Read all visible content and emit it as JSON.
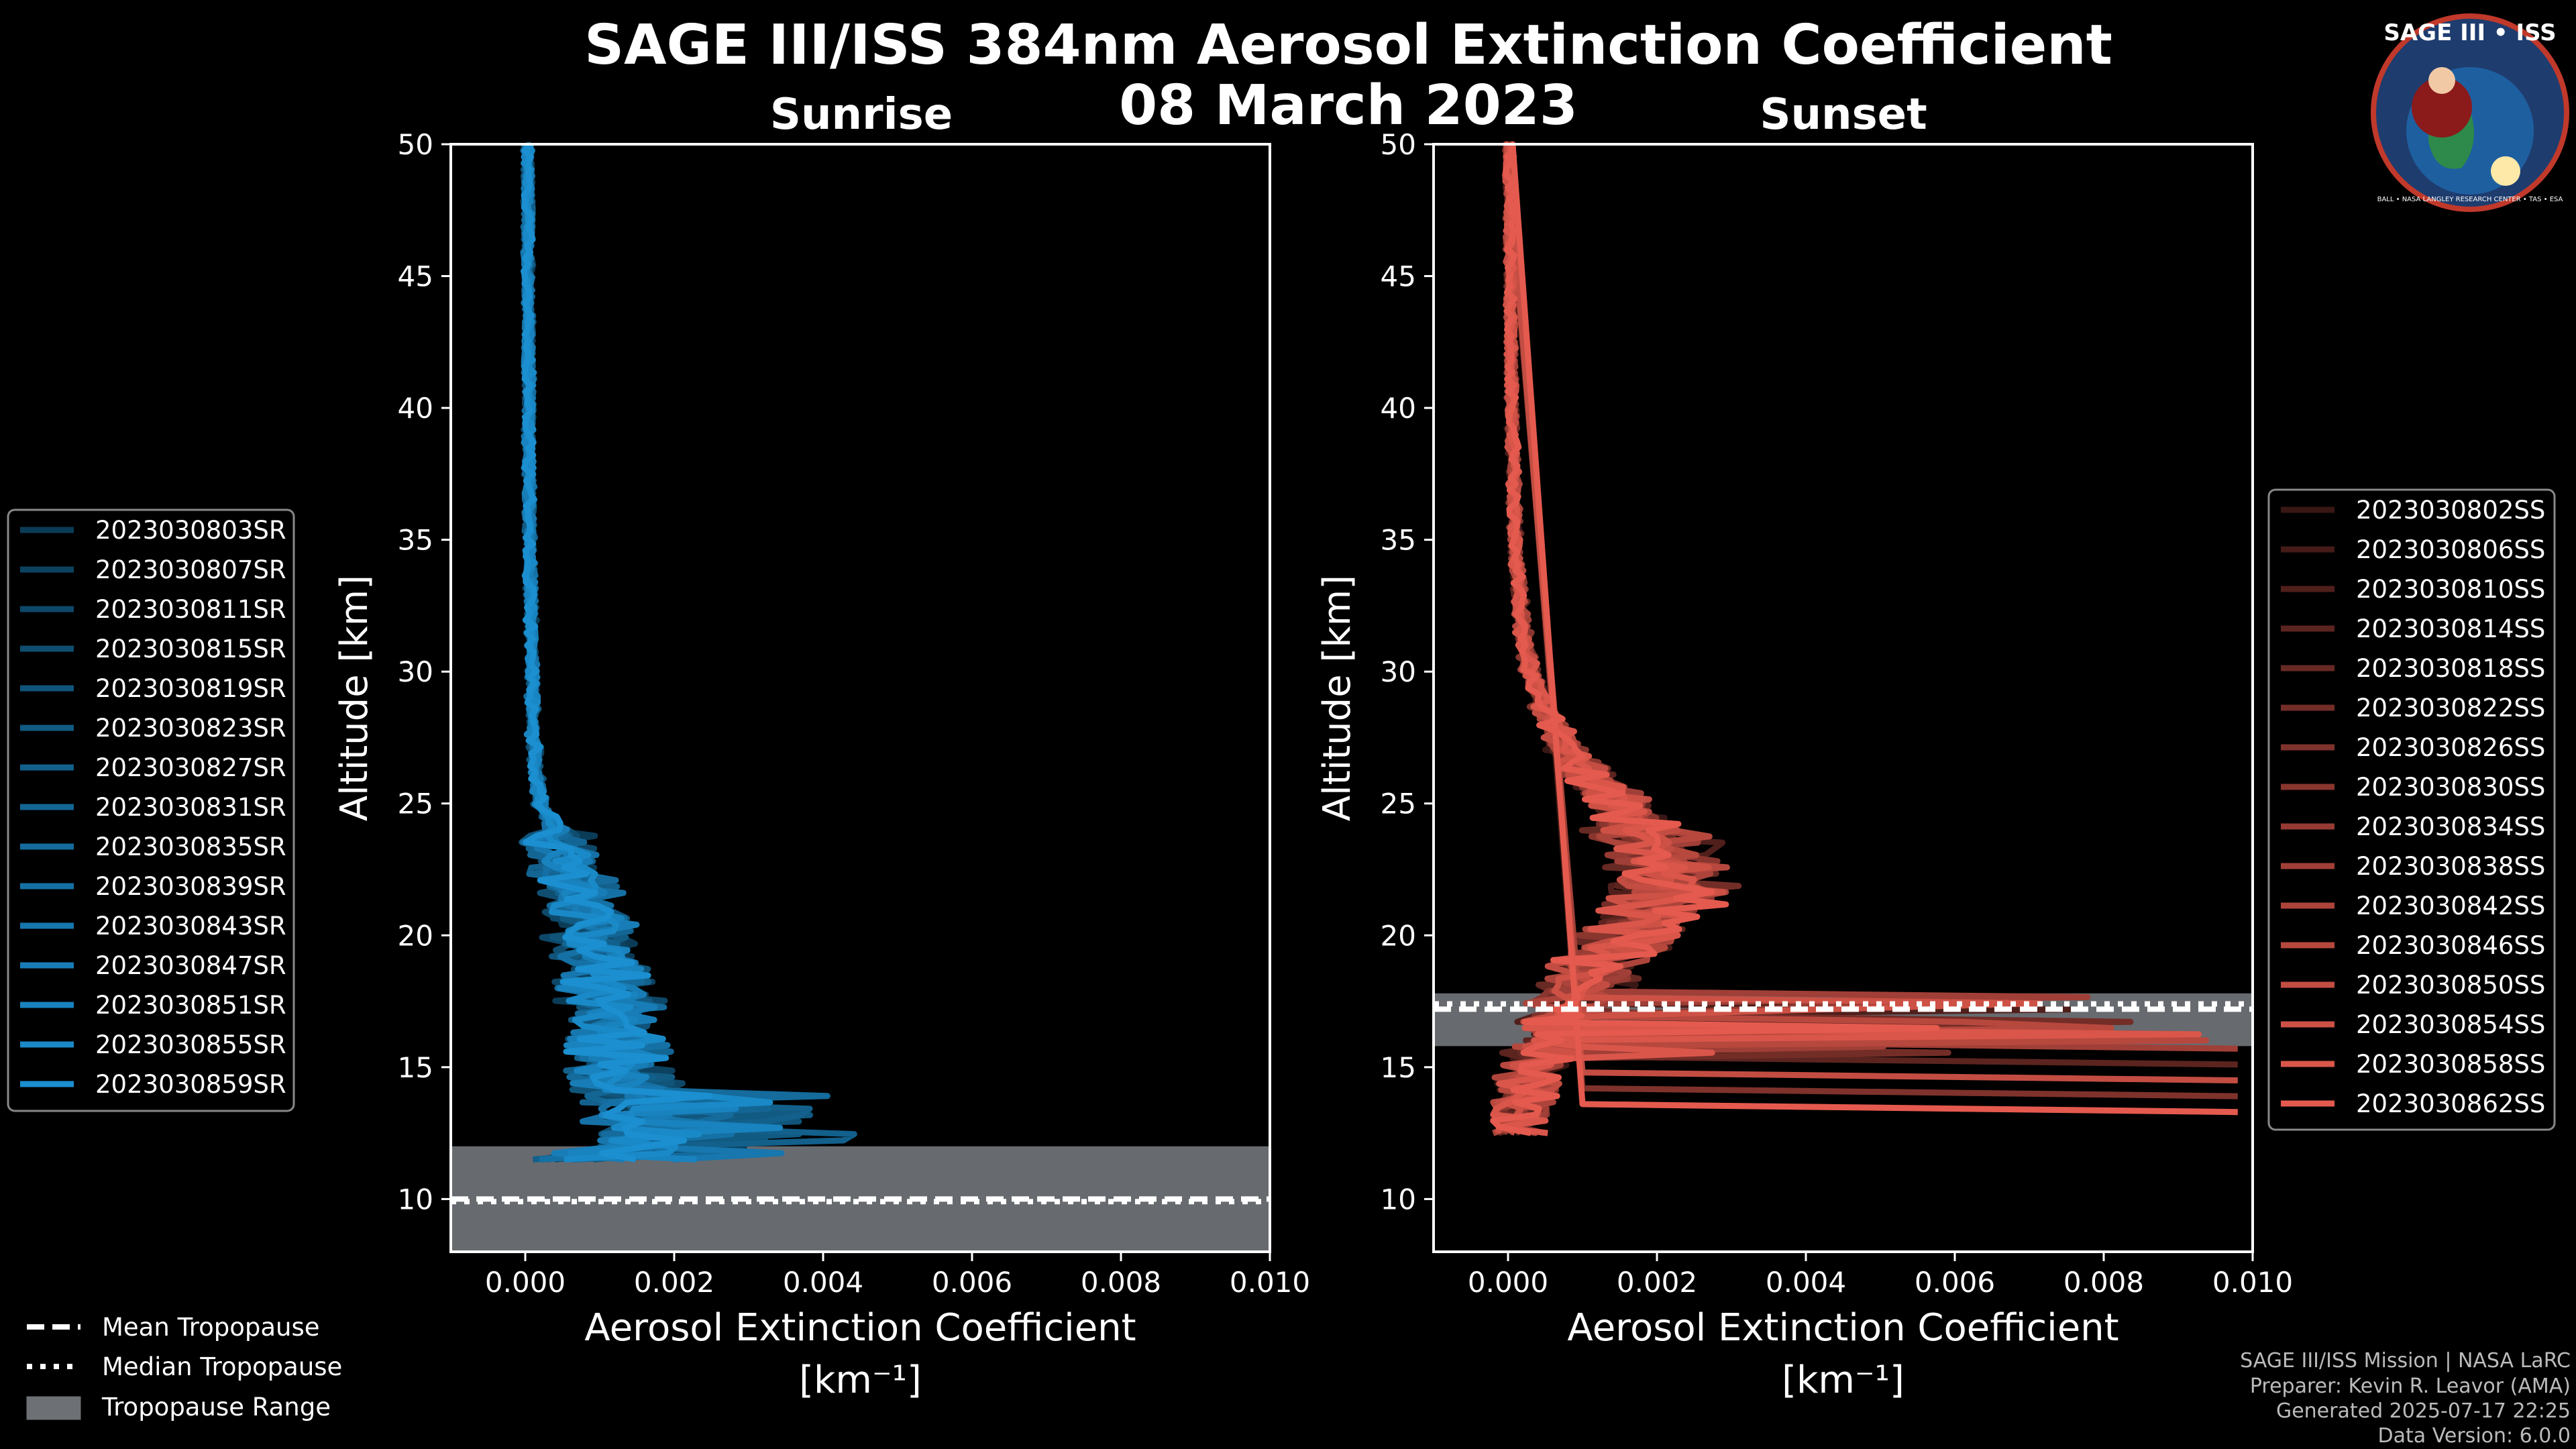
{
  "title_line1": "SAGE III/ISS 384nm Aerosol Extinction Coefficient",
  "title_line2": "08 March 2023",
  "badge": {
    "text": "SAGE III • ISS",
    "subtext": "BALL • NASA LANGLEY RESEARCH CENTER • TAS • ESA",
    "colors": {
      "ring": "#c0392b",
      "inner": "#1e5fa0"
    }
  },
  "colors": {
    "sunrise": "#1b8fd0",
    "sunset": "#e55a4e",
    "trop_fill": "#6d7075"
  },
  "tropopause_legend": {
    "mean": "Mean Tropopause",
    "median": "Median Tropopause",
    "range": "Tropopause Range"
  },
  "footer": {
    "line1": "SAGE III/ISS Mission | NASA LaRC",
    "line2": "Preparer: Kevin R. Leavor (AMA)",
    "line3": "Generated 2025-07-17 22:25",
    "line4": "Data Version: 6.0.0"
  },
  "chart_data": [
    {
      "type": "line",
      "title": "Sunrise",
      "xlabel": "Aerosol Extinction Coefficient",
      "xunit": "[km⁻¹]",
      "ylabel": "Altitude [km]",
      "xlim": [
        -0.001,
        0.01
      ],
      "ylim": [
        8,
        50
      ],
      "xticks": [
        "0.000",
        "0.002",
        "0.004",
        "0.006",
        "0.008",
        "0.010"
      ],
      "yticks": [
        "10",
        "15",
        "20",
        "25",
        "30",
        "35",
        "40",
        "45",
        "50"
      ],
      "series_names": [
        "2023030803SR",
        "2023030807SR",
        "2023030811SR",
        "2023030815SR",
        "2023030819SR",
        "2023030823SR",
        "2023030827SR",
        "2023030831SR",
        "2023030835SR",
        "2023030839SR",
        "2023030843SR",
        "2023030847SR",
        "2023030851SR",
        "2023030855SR",
        "2023030859SR"
      ],
      "typical_profile": {
        "altitude": [
          11.5,
          12,
          12.5,
          13,
          14,
          15,
          16,
          17,
          18,
          19,
          20,
          21,
          22,
          23,
          24,
          25,
          26,
          28,
          30,
          32,
          35,
          40,
          45,
          50
        ],
        "extinction": [
          0.0004,
          0.0013,
          0.0016,
          0.0016,
          0.0014,
          0.0013,
          0.0012,
          0.0012,
          0.0011,
          0.001,
          0.0009,
          0.0008,
          0.0007,
          0.0005,
          0.0004,
          0.0002,
          0.00015,
          0.0001,
          0.0001,
          8e-05,
          6e-05,
          5e-05,
          4e-05,
          3e-05
        ]
      },
      "tropopause": {
        "mean": 10.0,
        "median": 9.9,
        "range": [
          8.0,
          12.0
        ]
      }
    },
    {
      "type": "line",
      "title": "Sunset",
      "xlabel": "Aerosol Extinction Coefficient",
      "xunit": "[km⁻¹]",
      "ylabel": "Altitude [km]",
      "xlim": [
        -0.001,
        0.01
      ],
      "ylim": [
        8,
        50
      ],
      "xticks": [
        "0.000",
        "0.002",
        "0.004",
        "0.006",
        "0.008",
        "0.010"
      ],
      "yticks": [
        "10",
        "15",
        "20",
        "25",
        "30",
        "35",
        "40",
        "45",
        "50"
      ],
      "series_names": [
        "2023030802SS",
        "2023030806SS",
        "2023030810SS",
        "2023030814SS",
        "2023030818SS",
        "2023030822SS",
        "2023030826SS",
        "2023030830SS",
        "2023030834SS",
        "2023030838SS",
        "2023030842SS",
        "2023030846SS",
        "2023030850SS",
        "2023030854SS",
        "2023030858SS",
        "2023030862SS"
      ],
      "typical_profile": {
        "altitude": [
          12.5,
          13,
          14,
          15,
          16,
          17,
          18,
          19,
          20,
          21,
          21.5,
          22,
          23,
          24,
          25,
          26,
          27,
          28,
          29,
          30,
          32,
          35,
          40,
          45,
          50
        ],
        "extinction": [
          0.0001,
          0.0001,
          0.0002,
          0.0003,
          0.0006,
          0.0008,
          0.001,
          0.0013,
          0.0017,
          0.002,
          0.0021,
          0.0021,
          0.002,
          0.0018,
          0.0015,
          0.0011,
          0.0008,
          0.0006,
          0.0004,
          0.0003,
          0.00018,
          0.0001,
          5e-05,
          3e-05,
          2e-05
        ]
      },
      "tropopause": {
        "mean": 17.2,
        "median": 17.4,
        "range": [
          15.8,
          17.8
        ]
      }
    }
  ]
}
